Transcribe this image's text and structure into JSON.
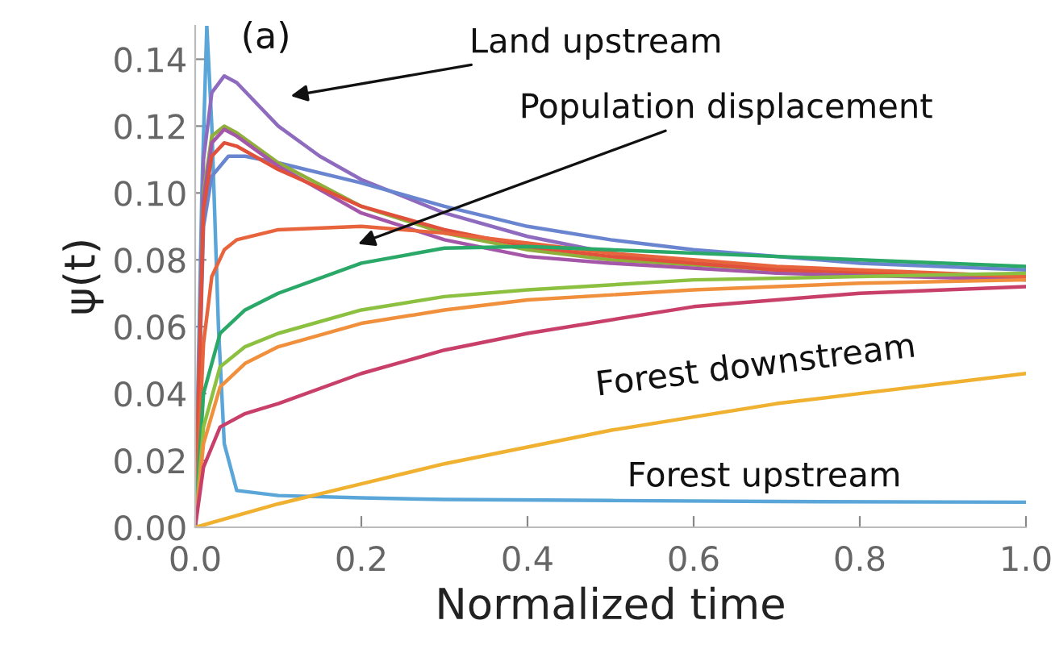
{
  "chart_data": {
    "type": "line",
    "xlabel": "Normalized time",
    "ylabel": "ψ(t)",
    "xlim": [
      0,
      1.0
    ],
    "ylim": [
      0,
      0.15
    ],
    "xticks": [
      {
        "value": 0,
        "label": "0.0"
      },
      {
        "value": 0.2,
        "label": "0.2"
      },
      {
        "value": 0.4,
        "label": "0.4"
      },
      {
        "value": 0.6,
        "label": "0.6"
      },
      {
        "value": 0.8,
        "label": "0.8"
      },
      {
        "value": 1.0,
        "label": "1.0"
      }
    ],
    "yticks": [
      {
        "value": 0,
        "label": "0.00"
      },
      {
        "value": 0.02,
        "label": "0.02"
      },
      {
        "value": 0.04,
        "label": "0.04"
      },
      {
        "value": 0.06,
        "label": "0.06"
      },
      {
        "value": 0.08,
        "label": "0.08"
      },
      {
        "value": 0.1,
        "label": "0.10"
      },
      {
        "value": 0.12,
        "label": "0.12"
      },
      {
        "value": 0.14,
        "label": "0.14"
      }
    ],
    "grid": false,
    "legend": false,
    "marker": "none",
    "line_style": "solid",
    "annotations": [
      "(a)",
      "Land upstream",
      "Population displacement",
      "Forest downstream",
      "Forest upstream"
    ],
    "series": [
      {
        "color": "#5aa6d8",
        "x": [
          0,
          0.008,
          0.014,
          0.02,
          0.028,
          0.035,
          0.05,
          0.1,
          0.2,
          0.3,
          0.5,
          0.7,
          1.0
        ],
        "values": [
          0,
          0.1,
          0.15,
          0.12,
          0.06,
          0.025,
          0.011,
          0.0095,
          0.0088,
          0.0083,
          0.008,
          0.0077,
          0.0075
        ]
      },
      {
        "color": "#8e6bbf",
        "x": [
          0,
          0.01,
          0.02,
          0.035,
          0.05,
          0.1,
          0.15,
          0.2,
          0.3,
          0.4,
          0.5,
          0.6,
          0.8,
          1.0
        ],
        "values": [
          0,
          0.11,
          0.13,
          0.135,
          0.133,
          0.12,
          0.111,
          0.104,
          0.094,
          0.087,
          0.082,
          0.079,
          0.076,
          0.074
        ]
      },
      {
        "color": "#6a85d0",
        "x": [
          0,
          0.01,
          0.02,
          0.04,
          0.06,
          0.1,
          0.2,
          0.3,
          0.4,
          0.5,
          0.6,
          0.8,
          1.0
        ],
        "values": [
          0,
          0.09,
          0.105,
          0.111,
          0.111,
          0.109,
          0.103,
          0.096,
          0.09,
          0.086,
          0.083,
          0.079,
          0.077
        ]
      },
      {
        "color": "#8fae3a",
        "x": [
          0,
          0.01,
          0.02,
          0.035,
          0.05,
          0.1,
          0.2,
          0.3,
          0.4,
          0.5,
          0.7,
          1.0
        ],
        "values": [
          0,
          0.1,
          0.117,
          0.12,
          0.118,
          0.109,
          0.096,
          0.088,
          0.083,
          0.08,
          0.077,
          0.075
        ]
      },
      {
        "color": "#a456a8",
        "x": [
          0,
          0.01,
          0.02,
          0.035,
          0.05,
          0.1,
          0.2,
          0.3,
          0.4,
          0.5,
          0.7,
          1.0
        ],
        "values": [
          0,
          0.098,
          0.115,
          0.119,
          0.117,
          0.108,
          0.094,
          0.086,
          0.081,
          0.079,
          0.076,
          0.074
        ]
      },
      {
        "color": "#e0503a",
        "x": [
          0,
          0.01,
          0.02,
          0.035,
          0.05,
          0.1,
          0.2,
          0.3,
          0.4,
          0.5,
          0.7,
          1.0
        ],
        "values": [
          0,
          0.095,
          0.111,
          0.115,
          0.114,
          0.107,
          0.096,
          0.089,
          0.084,
          0.081,
          0.077,
          0.075
        ]
      },
      {
        "color": "#e8643c",
        "x": [
          0,
          0.01,
          0.02,
          0.035,
          0.05,
          0.1,
          0.2,
          0.3,
          0.4,
          0.5,
          0.7,
          1.0
        ],
        "values": [
          0,
          0.055,
          0.075,
          0.083,
          0.086,
          0.089,
          0.09,
          0.088,
          0.085,
          0.082,
          0.078,
          0.075
        ]
      },
      {
        "color": "#2aa868",
        "x": [
          0,
          0.01,
          0.03,
          0.06,
          0.1,
          0.2,
          0.3,
          0.4,
          0.5,
          0.7,
          1.0
        ],
        "values": [
          0,
          0.04,
          0.058,
          0.065,
          0.07,
          0.079,
          0.0835,
          0.084,
          0.083,
          0.081,
          0.078
        ]
      },
      {
        "color": "#8cc040",
        "x": [
          0,
          0.01,
          0.03,
          0.06,
          0.1,
          0.2,
          0.3,
          0.4,
          0.6,
          0.8,
          1.0
        ],
        "values": [
          0,
          0.03,
          0.048,
          0.054,
          0.058,
          0.065,
          0.069,
          0.071,
          0.074,
          0.075,
          0.076
        ]
      },
      {
        "color": "#f0903c",
        "x": [
          0,
          0.01,
          0.03,
          0.06,
          0.1,
          0.2,
          0.3,
          0.4,
          0.6,
          0.8,
          1.0
        ],
        "values": [
          0,
          0.025,
          0.042,
          0.049,
          0.054,
          0.061,
          0.065,
          0.068,
          0.071,
          0.073,
          0.074
        ]
      },
      {
        "color": "#c8406a",
        "x": [
          0,
          0.01,
          0.03,
          0.06,
          0.1,
          0.2,
          0.3,
          0.4,
          0.6,
          0.8,
          1.0
        ],
        "values": [
          0,
          0.018,
          0.03,
          0.034,
          0.037,
          0.046,
          0.053,
          0.058,
          0.066,
          0.07,
          0.072
        ]
      },
      {
        "color": "#f0b030",
        "x": [
          0,
          0.1,
          0.2,
          0.3,
          0.4,
          0.5,
          0.6,
          0.7,
          0.8,
          0.9,
          1.0
        ],
        "values": [
          0,
          0.007,
          0.013,
          0.019,
          0.024,
          0.029,
          0.033,
          0.037,
          0.04,
          0.043,
          0.046
        ]
      }
    ]
  }
}
